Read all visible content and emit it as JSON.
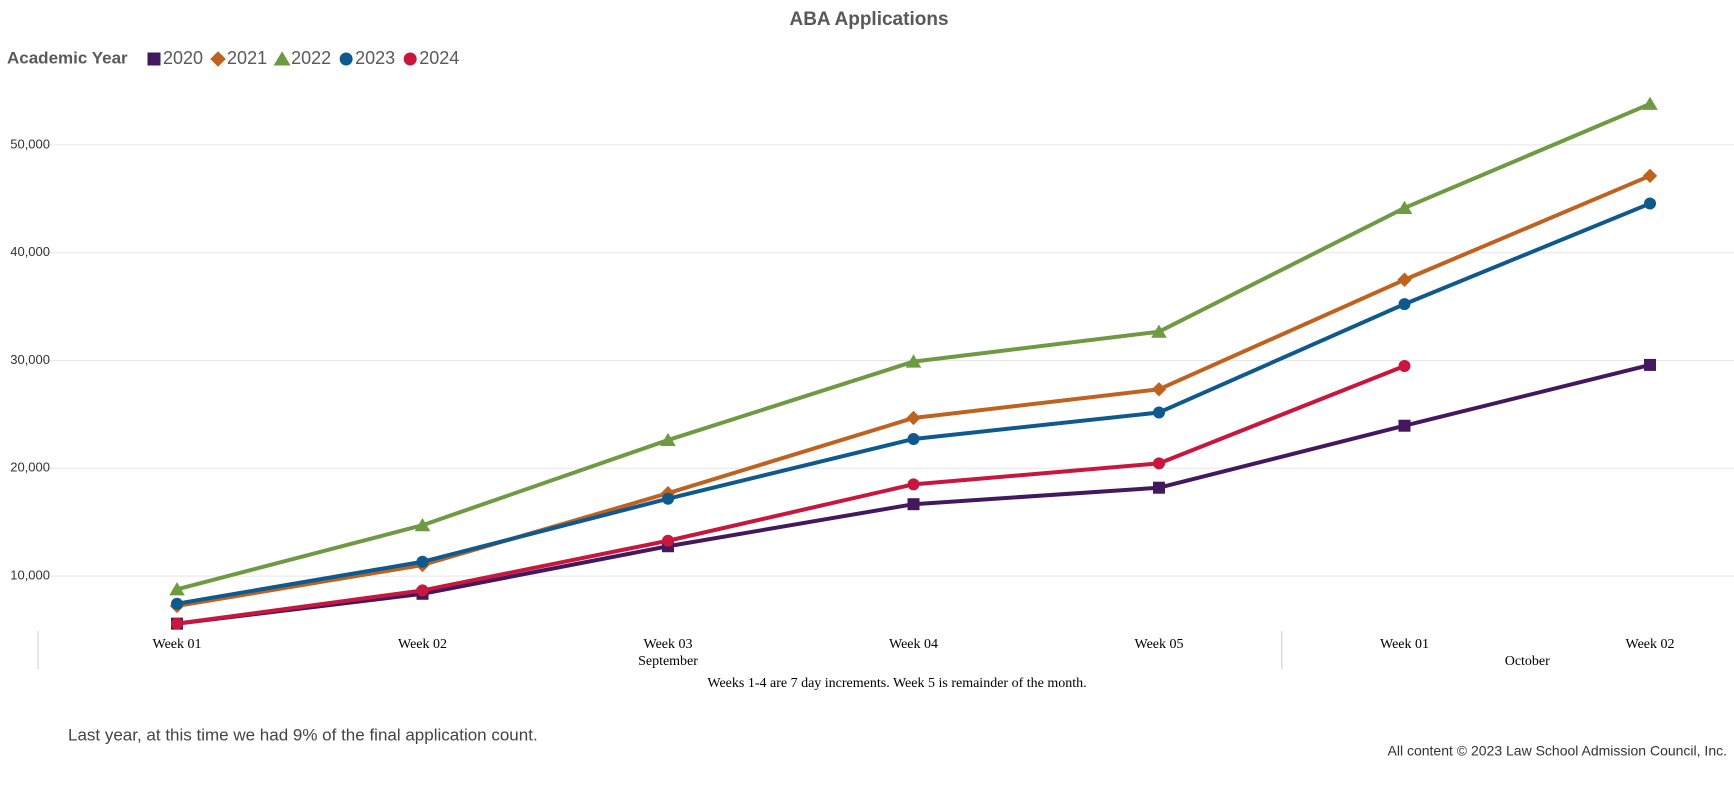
{
  "chart_data": {
    "type": "line",
    "title": "ABA Applications",
    "legend_title": "Academic Year",
    "categories": [
      "Week 01",
      "Week 02",
      "Week 03",
      "Week 04",
      "Week 05",
      "Week 01",
      "Week 02"
    ],
    "category_groups": [
      {
        "label": "September",
        "count": 5
      },
      {
        "label": "October",
        "count": 2
      }
    ],
    "x_note": "Weeks 1-4 are 7 day increments. Week 5 is remainder of the month.",
    "ylim": [
      5000,
      55000
    ],
    "yticks": [
      {
        "value": 10000,
        "label": "10,000"
      },
      {
        "value": 20000,
        "label": "20,000"
      },
      {
        "value": 30000,
        "label": "30,000"
      },
      {
        "value": 40000,
        "label": "40,000"
      },
      {
        "value": 50000,
        "label": "50,000"
      }
    ],
    "grid": true,
    "series": [
      {
        "name": "2020",
        "color": "#44185e",
        "marker": "square",
        "values": [
          5590,
          8360,
          12770,
          16670,
          18200,
          23950,
          29590
        ]
      },
      {
        "name": "2021",
        "color": "#c0621f",
        "marker": "diamond",
        "values": [
          7230,
          11030,
          17690,
          24670,
          27330,
          37490,
          47130
        ]
      },
      {
        "name": "2022",
        "color": "#6e9a41",
        "marker": "triangle",
        "values": [
          8770,
          14720,
          22620,
          29900,
          32670,
          44150,
          53800
        ]
      },
      {
        "name": "2023",
        "color": "#0e5a8e",
        "marker": "circle",
        "values": [
          7440,
          11330,
          17180,
          22720,
          25180,
          35230,
          44560
        ]
      },
      {
        "name": "2024",
        "color": "#c8163d",
        "marker": "circle",
        "values": [
          5590,
          8670,
          13280,
          18510,
          20460,
          29490,
          null
        ]
      }
    ]
  },
  "note": "Last year, at this time we had 9% of the final application count.",
  "copyright": "All content © 2023 Law School Admission Council, Inc."
}
